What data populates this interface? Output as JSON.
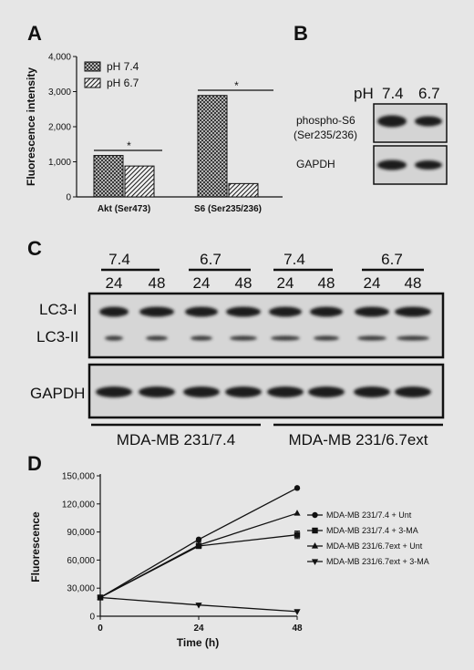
{
  "panels": {
    "a": "A",
    "b": "B",
    "c": "C",
    "d": "D"
  },
  "colors": {
    "background": "#e6e6e6",
    "band": "#1a1a1a",
    "membrane": "#d4d4d4"
  },
  "blot_b": {
    "ph_label": "pH",
    "lanes": [
      "7.4",
      "6.7"
    ],
    "rows": [
      "phospho-S6\n(Ser235/236)",
      "GAPDH"
    ],
    "row_label_line1": "phospho-S6",
    "row_label_line2": "(Ser235/236)",
    "row2_label": "GAPDH"
  },
  "blot_c": {
    "ph_groups": [
      "7.4",
      "6.7",
      "7.4",
      "6.7"
    ],
    "times": [
      "24",
      "48",
      "24",
      "48",
      "24",
      "48",
      "24",
      "48"
    ],
    "band_labels": {
      "lc3i": "LC3-I",
      "lc3ii": "LC3-II",
      "gapdh": "GAPDH"
    },
    "cell_lines": [
      "MDA-MB 231/7.4",
      "MDA-MB 231/6.7ext"
    ]
  },
  "chart_data": [
    {
      "type": "bar",
      "panel": "A",
      "ylabel": "Fluorescence intensity",
      "categories": [
        "Akt (Ser473)",
        "S6 (Ser235/236)"
      ],
      "series": [
        {
          "name": "pH 7.4",
          "values": [
            1180,
            2890
          ],
          "pattern": "crosshatch"
        },
        {
          "name": "pH 6.7",
          "values": [
            880,
            380
          ],
          "pattern": "diagonal"
        }
      ],
      "ylim": [
        0,
        4000
      ],
      "yticks": [
        "0",
        "1,000",
        "2,000",
        "3,000",
        "4,000"
      ],
      "yticks_values": [
        0,
        1000,
        2000,
        3000,
        4000
      ],
      "significance": [
        "*",
        "*"
      ],
      "legend": "top-left"
    },
    {
      "type": "line",
      "panel": "D",
      "xlabel": "Time (h)",
      "ylabel": "Fluorescence",
      "x": [
        0,
        24,
        48
      ],
      "xticks": [
        "0",
        "24",
        "48"
      ],
      "ylim": [
        0,
        150000
      ],
      "yticks": [
        "0",
        "30,000",
        "60,000",
        "90,000",
        "120,000",
        "150,000"
      ],
      "yticks_values": [
        0,
        30000,
        60000,
        90000,
        120000,
        150000
      ],
      "series": [
        {
          "name": "MDA-MB 231/7.4 + Unt",
          "marker": "circle",
          "values": [
            20000,
            82000,
            137000
          ]
        },
        {
          "name": "MDA-MB 231/7.4 +  3-MA",
          "marker": "square",
          "values": [
            20000,
            75000,
            87000
          ]
        },
        {
          "name": "MDA-MB 231/6.7ext + Unt",
          "marker": "triangle-up",
          "values": [
            20000,
            76000,
            110000
          ]
        },
        {
          "name": "MDA-MB 231/6.7ext +  3-MA",
          "marker": "triangle-down",
          "values": [
            20000,
            12000,
            5000
          ]
        }
      ],
      "legend": "right"
    }
  ]
}
